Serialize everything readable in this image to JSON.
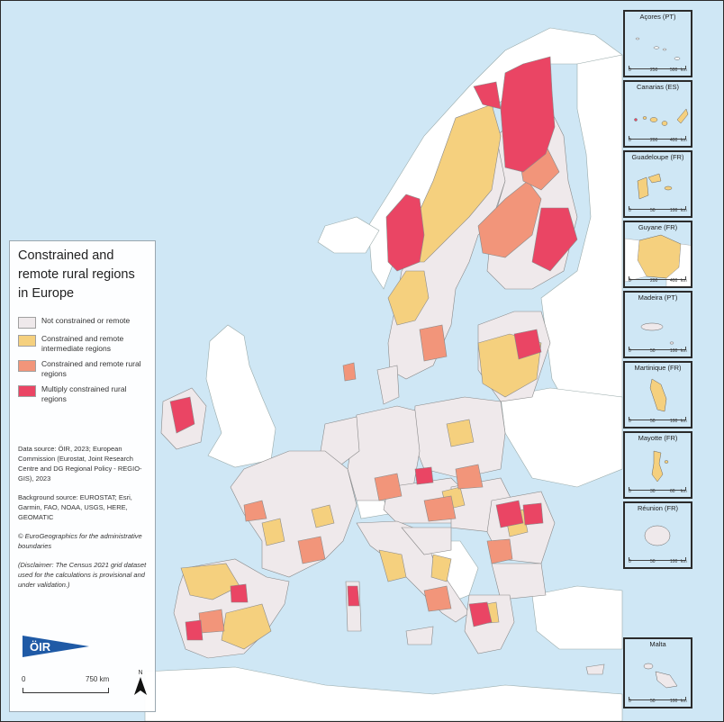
{
  "legend": {
    "title": "Constrained and remote rural regions in Europe",
    "classes": [
      {
        "label": "Not constrained or remote",
        "color": "#efe9eb"
      },
      {
        "label": "Constrained and remote intermediate regions",
        "color": "#f5d07e"
      },
      {
        "label": "Constrained and remote rural regions",
        "color": "#f2957a"
      },
      {
        "label": "Multiply constrained rural regions",
        "color": "#ea4564"
      }
    ],
    "data_source": "Data source: ÖIR, 2023; European Commission (Eurostat, Joint Research Centre and DG Regional Policy - REGIO-GIS), 2023",
    "background_source": "Background source: EUROSTAT; Esri, Garmin, FAO, NOAA, USGS, HERE, GEOMATIC",
    "boundaries": "© EuroGeographics for the administrative boundaries",
    "disclaimer": "(Disclaimer: The Census 2021 grid dataset used for the calculations is provisional and under validation.)",
    "logo_text": "ÖIR",
    "scale_start": "0",
    "scale_end": "750 km",
    "north": "N"
  },
  "colors": {
    "sea": "#cfe7f5",
    "non_eu_land": "#ffffff",
    "border": "#8a8a8a",
    "logo": "#1f5aa6"
  },
  "insets": [
    {
      "title": "Açores (PT)",
      "scale": [
        "0",
        "250",
        "500",
        "km"
      ]
    },
    {
      "title": "Canarias (ES)",
      "scale": [
        "0",
        "200",
        "400",
        "km"
      ]
    },
    {
      "title": "Guadeloupe (FR)",
      "scale": [
        "0",
        "50",
        "100",
        "km"
      ]
    },
    {
      "title": "Guyane (FR)",
      "scale": [
        "0",
        "200",
        "400",
        "km"
      ]
    },
    {
      "title": "Madeira (PT)",
      "scale": [
        "0",
        "50",
        "100",
        "km"
      ]
    },
    {
      "title": "Martinique (FR)",
      "scale": [
        "0",
        "50",
        "100",
        "km"
      ]
    },
    {
      "title": "Mayotte (FR)",
      "scale": [
        "0",
        "30",
        "60",
        "km"
      ]
    },
    {
      "title": "Réunion (FR)",
      "scale": [
        "0",
        "50",
        "100",
        "km"
      ]
    },
    {
      "title": "Malta",
      "scale": [
        "0",
        "50",
        "100",
        "km"
      ]
    }
  ]
}
